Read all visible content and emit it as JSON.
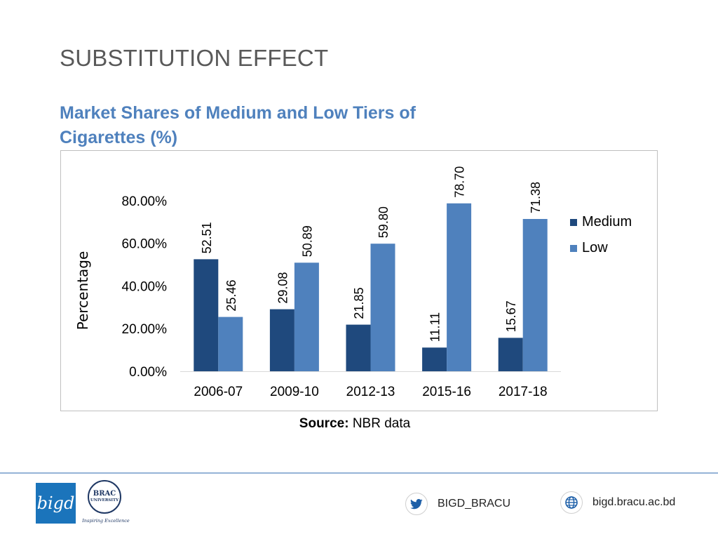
{
  "slide": {
    "title": "SUBSTITUTION EFFECT",
    "chart_heading": "Market Shares of Medium and Low Tiers of Cigarettes (%)",
    "source_label": "Source:",
    "source_value": "NBR data"
  },
  "footer": {
    "bigd_logo_text": "bigd",
    "brac_name_line1": "BRAC",
    "brac_name_line2": "UNIVERSITY",
    "brac_tagline": "Inspiring Excellence",
    "twitter_handle": "BIGD_BRACU",
    "website": "bigd.bracu.ac.bd",
    "twitter_icon": "twitter-bird-icon",
    "web_icon": "globe-icon"
  },
  "chart_data": {
    "type": "bar",
    "title": "Market Shares of Medium and Low Tiers of Cigarettes (%)",
    "xlabel": "",
    "ylabel": "Percentage",
    "categories": [
      "2006-07",
      "2009-10",
      "2012-13",
      "2015-16",
      "2017-18"
    ],
    "series": [
      {
        "name": "Medium",
        "color": "#1f497d",
        "values": [
          52.51,
          29.08,
          21.85,
          11.11,
          15.67
        ],
        "labels": [
          "52.51",
          "29.08",
          "21.85",
          "11.11",
          "15.67"
        ]
      },
      {
        "name": "Low",
        "color": "#4f81bd",
        "values": [
          25.46,
          50.89,
          59.8,
          78.7,
          71.38
        ],
        "labels": [
          "25.46",
          "50.89",
          "59.80",
          "78.70",
          "71.38"
        ]
      }
    ],
    "ylim": [
      0,
      80
    ],
    "yticks": [
      0,
      20,
      40,
      60,
      80
    ],
    "ytick_labels": [
      "0.00%",
      "20.00%",
      "40.00%",
      "60.00%",
      "80.00%"
    ],
    "grid": false,
    "legend": "right"
  }
}
